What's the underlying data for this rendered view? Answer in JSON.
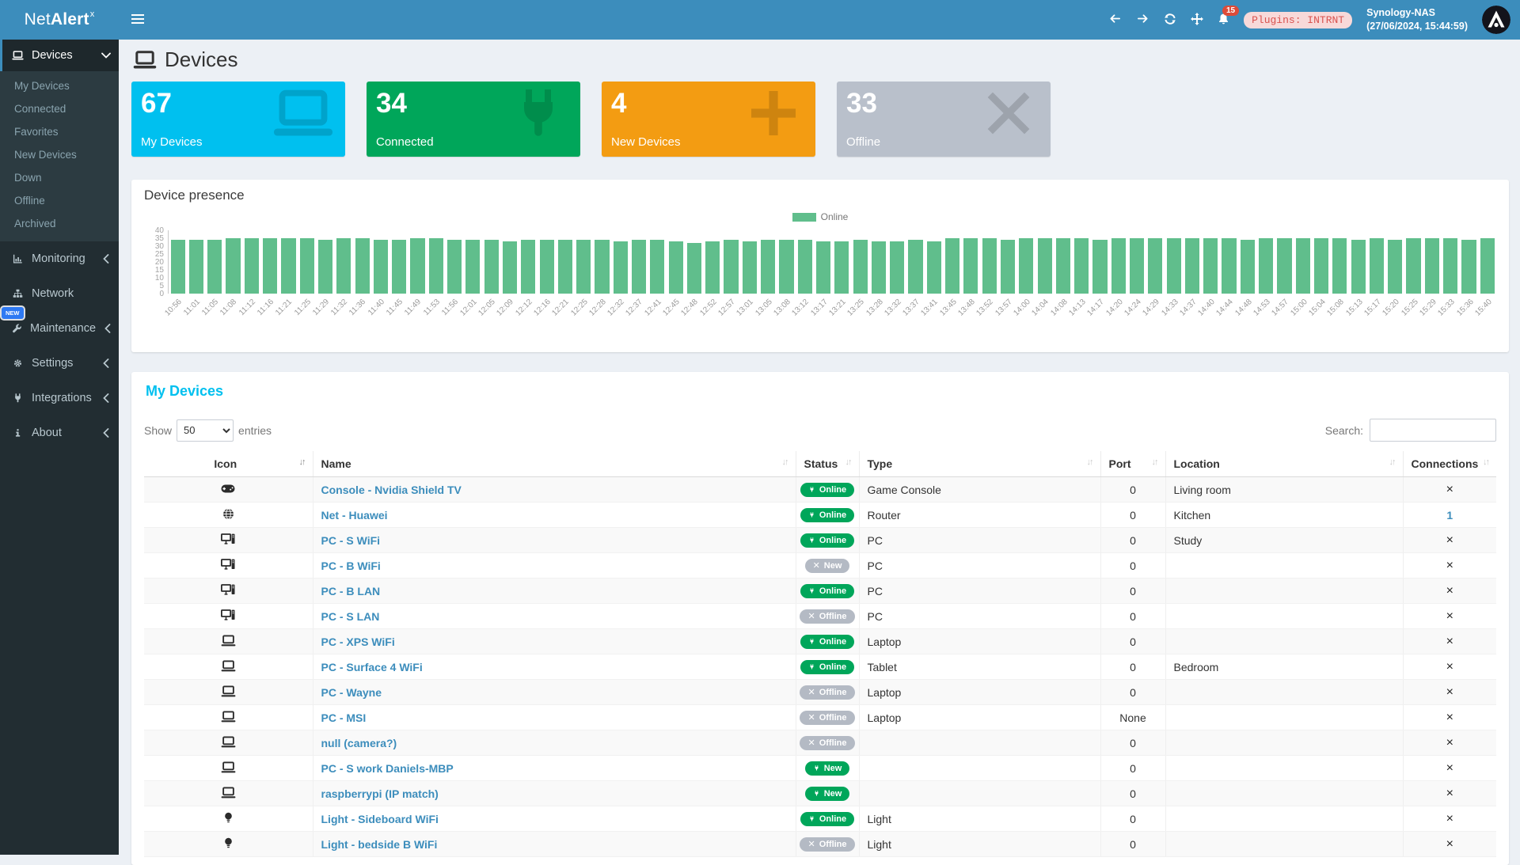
{
  "topbar": {
    "logo_prefix": "Net",
    "logo_bold": "Alert",
    "logo_sup": "x",
    "notifications_count": "15",
    "plugins_badge": "Plugins: INTRNT",
    "host_name": "Synology-NAS",
    "host_time": "(27/06/2024, 15:44:59)"
  },
  "sidebar": {
    "devices_item": {
      "label": "Devices",
      "icon": "laptop-icon",
      "expanded": true
    },
    "devices_submenu": [
      "My Devices",
      "Connected",
      "Favorites",
      "New Devices",
      "Down",
      "Offline",
      "Archived"
    ],
    "items": [
      {
        "label": "Monitoring",
        "icon": "chart-icon",
        "chevron": true
      },
      {
        "label": "Network",
        "icon": "sitemap-icon",
        "chevron": false
      },
      {
        "label": "Maintenance",
        "icon": "wrench-icon",
        "chevron": true,
        "badge": "NEW"
      },
      {
        "label": "Settings",
        "icon": "gear-icon",
        "chevron": true
      },
      {
        "label": "Integrations",
        "icon": "plug-icon",
        "chevron": true
      },
      {
        "label": "About",
        "icon": "info-icon",
        "chevron": true
      }
    ]
  },
  "page": {
    "title": "Devices"
  },
  "cards": [
    {
      "value": "67",
      "label": "My Devices",
      "bg": "#00c0ef",
      "icon": "laptop-icon"
    },
    {
      "value": "34",
      "label": "Connected",
      "bg": "#00a65a",
      "icon": "plug-icon"
    },
    {
      "value": "4",
      "label": "New Devices",
      "bg": "#f39c12",
      "icon": "plus-icon"
    },
    {
      "value": "33",
      "label": "Offline",
      "bg": "#b9c0cb",
      "icon": "x-icon"
    }
  ],
  "chart": {
    "title": "Device presence",
    "legend_label": "Online"
  },
  "chart_data": {
    "type": "bar",
    "title": "Device presence",
    "categories": [
      "10:56",
      "11:01",
      "11:05",
      "11:08",
      "11:12",
      "11:16",
      "11:21",
      "11:25",
      "11:29",
      "11:32",
      "11:36",
      "11:40",
      "11:45",
      "11:49",
      "11:53",
      "11:56",
      "12:01",
      "12:05",
      "12:09",
      "12:12",
      "12:16",
      "12:21",
      "12:25",
      "12:28",
      "12:32",
      "12:37",
      "12:41",
      "12:45",
      "12:48",
      "12:52",
      "12:57",
      "13:01",
      "13:05",
      "13:08",
      "13:12",
      "13:17",
      "13:21",
      "13:25",
      "13:28",
      "13:32",
      "13:37",
      "13:41",
      "13:45",
      "13:48",
      "13:52",
      "13:57",
      "14:00",
      "14:04",
      "14:08",
      "14:13",
      "14:17",
      "14:20",
      "14:24",
      "14:29",
      "14:33",
      "14:37",
      "14:40",
      "14:44",
      "14:48",
      "14:53",
      "14:57",
      "15:00",
      "15:04",
      "15:08",
      "15:13",
      "15:17",
      "15:20",
      "15:25",
      "15:29",
      "15:33",
      "15:36",
      "15:40"
    ],
    "series": [
      {
        "name": "Online",
        "color": "#60be8c",
        "values": [
          34,
          34,
          34,
          35,
          35,
          35,
          35,
          35,
          34,
          35,
          35,
          34,
          34,
          35,
          35,
          34,
          34,
          34,
          33,
          34,
          34,
          34,
          34,
          34,
          33,
          34,
          34,
          33,
          32,
          33,
          34,
          33,
          34,
          34,
          34,
          33,
          33,
          34,
          33,
          33,
          34,
          33,
          35,
          35,
          35,
          34,
          35,
          35,
          35,
          35,
          34,
          35,
          35,
          35,
          35,
          35,
          35,
          35,
          34,
          35,
          35,
          35,
          35,
          35,
          34,
          35,
          34,
          35,
          35,
          35,
          34,
          35
        ]
      }
    ],
    "xlabel": "",
    "ylabel": "",
    "ylim": [
      0,
      40
    ],
    "yticks": [
      0,
      5,
      10,
      15,
      20,
      25,
      30,
      35,
      40
    ],
    "grid": false,
    "legend_position": "top-center",
    "x_tick_rotation": -45
  },
  "table": {
    "title": "My Devices",
    "show_label": "Show",
    "entries_label": "entries",
    "page_length": "50",
    "search_label": "Search:",
    "columns": [
      "Icon",
      "Name",
      "Status",
      "Type",
      "Port",
      "Location",
      "Connections"
    ],
    "rows": [
      {
        "icon": "gamepad-icon",
        "name": "Console - Nvidia Shield TV",
        "status": {
          "label": "Online",
          "color": "green",
          "icon": "plug-icon"
        },
        "type": "Game Console",
        "port": "0",
        "location": "Living room",
        "connections": {
          "label": "×",
          "is_link": false
        }
      },
      {
        "icon": "globe-icon",
        "name": "Net - Huawei",
        "status": {
          "label": "Online",
          "color": "green",
          "icon": "plug-icon"
        },
        "type": "Router",
        "port": "0",
        "location": "Kitchen",
        "connections": {
          "label": "1",
          "is_link": true
        }
      },
      {
        "icon": "desktop-icon",
        "name": "PC - S WiFi",
        "status": {
          "label": "Online",
          "color": "green",
          "icon": "plug-icon"
        },
        "type": "PC",
        "port": "0",
        "location": "Study",
        "connections": {
          "label": "×",
          "is_link": false
        }
      },
      {
        "icon": "desktop-icon",
        "name": "PC - B WiFi",
        "status": {
          "label": "New",
          "color": "gray",
          "icon": "x-icon"
        },
        "type": "PC",
        "port": "0",
        "location": "",
        "connections": {
          "label": "×",
          "is_link": false
        }
      },
      {
        "icon": "desktop-icon",
        "name": "PC - B LAN",
        "status": {
          "label": "Online",
          "color": "green",
          "icon": "plug-icon"
        },
        "type": "PC",
        "port": "0",
        "location": "",
        "connections": {
          "label": "×",
          "is_link": false
        }
      },
      {
        "icon": "desktop-icon",
        "name": "PC - S LAN",
        "status": {
          "label": "Offline",
          "color": "gray",
          "icon": "x-icon"
        },
        "type": "PC",
        "port": "0",
        "location": "",
        "connections": {
          "label": "×",
          "is_link": false
        }
      },
      {
        "icon": "laptop-icon",
        "name": "PC - XPS WiFi",
        "status": {
          "label": "Online",
          "color": "green",
          "icon": "plug-icon"
        },
        "type": "Laptop",
        "port": "0",
        "location": "",
        "connections": {
          "label": "×",
          "is_link": false
        }
      },
      {
        "icon": "laptop-icon",
        "name": "PC - Surface 4 WiFi",
        "status": {
          "label": "Online",
          "color": "green",
          "icon": "plug-icon"
        },
        "type": "Tablet",
        "port": "0",
        "location": "Bedroom",
        "connections": {
          "label": "×",
          "is_link": false
        }
      },
      {
        "icon": "laptop-icon",
        "name": "PC - Wayne",
        "status": {
          "label": "Offline",
          "color": "gray",
          "icon": "x-icon"
        },
        "type": "Laptop",
        "port": "0",
        "location": "",
        "connections": {
          "label": "×",
          "is_link": false
        }
      },
      {
        "icon": "laptop-icon",
        "name": "PC - MSI",
        "status": {
          "label": "Offline",
          "color": "gray",
          "icon": "x-icon"
        },
        "type": "Laptop",
        "port": "None",
        "location": "",
        "connections": {
          "label": "×",
          "is_link": false
        }
      },
      {
        "icon": "laptop-icon",
        "name": "null (camera?)",
        "status": {
          "label": "Offline",
          "color": "gray",
          "icon": "x-icon"
        },
        "type": "",
        "port": "0",
        "location": "",
        "connections": {
          "label": "×",
          "is_link": false
        }
      },
      {
        "icon": "laptop-icon",
        "name": "PC - S work Daniels-MBP",
        "status": {
          "label": "New",
          "color": "green",
          "icon": "plug-icon"
        },
        "type": "",
        "port": "0",
        "location": "",
        "connections": {
          "label": "×",
          "is_link": false
        }
      },
      {
        "icon": "laptop-icon",
        "name": "raspberrypi (IP match)",
        "status": {
          "label": "New",
          "color": "green",
          "icon": "plug-icon"
        },
        "type": "",
        "port": "0",
        "location": "",
        "connections": {
          "label": "×",
          "is_link": false
        }
      },
      {
        "icon": "lightbulb-icon",
        "name": "Light - Sideboard WiFi",
        "status": {
          "label": "Online",
          "color": "green",
          "icon": "plug-icon"
        },
        "type": "Light",
        "port": "0",
        "location": "",
        "connections": {
          "label": "×",
          "is_link": false
        }
      },
      {
        "icon": "lightbulb-icon",
        "name": "Light - bedside B WiFi",
        "status": {
          "label": "Offline",
          "color": "gray",
          "icon": "x-icon"
        },
        "type": "Light",
        "port": "0",
        "location": "",
        "connections": {
          "label": "×",
          "is_link": false
        }
      }
    ]
  }
}
